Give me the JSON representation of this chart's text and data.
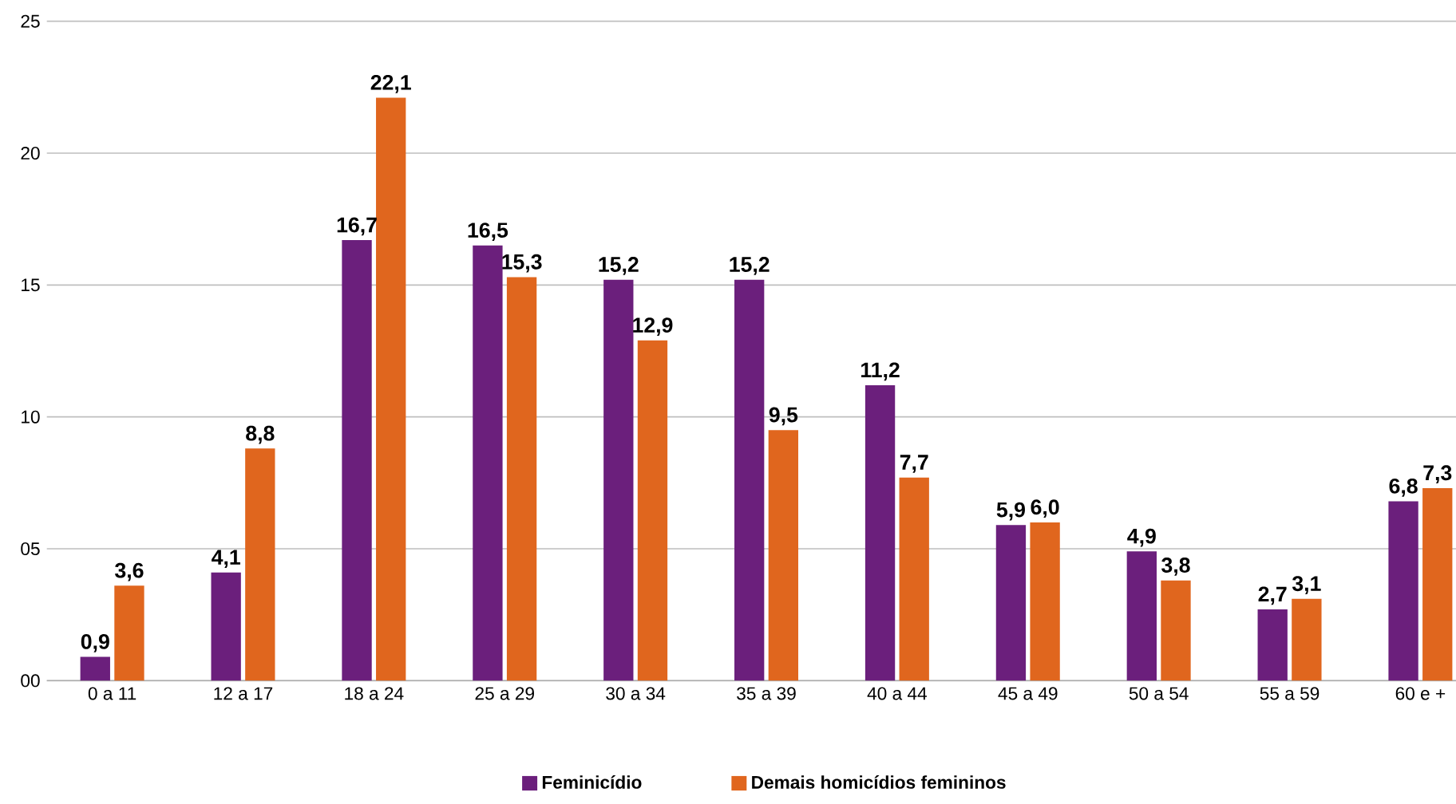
{
  "chart_data": {
    "type": "bar",
    "categories": [
      "0 a 11",
      "12 a 17",
      "18 a 24",
      "25 a 29",
      "30 a 34",
      "35 a 39",
      "40 a 44",
      "45 a 49",
      "50 a 54",
      "55 a 59",
      "60 e +"
    ],
    "series": [
      {
        "name": "Feminicídio",
        "color": "#6b1f7c",
        "values": [
          0.9,
          4.1,
          16.7,
          16.5,
          15.2,
          15.2,
          11.2,
          5.9,
          4.9,
          2.7,
          6.8
        ],
        "value_labels": [
          "0,9",
          "4,1",
          "16,7",
          "16,5",
          "15,2",
          "15,2",
          "11,2",
          "5,9",
          "4,9",
          "2,7",
          "6,8"
        ]
      },
      {
        "name": "Demais homicídios femininos",
        "color": "#e0661e",
        "values": [
          3.6,
          8.8,
          22.1,
          15.3,
          12.9,
          9.5,
          7.7,
          6.0,
          3.8,
          3.1,
          7.3
        ],
        "value_labels": [
          "3,6",
          "8,8",
          "22,1",
          "15,3",
          "12,9",
          "9,5",
          "7,7",
          "6,0",
          "3,8",
          "3,1",
          "7,3"
        ]
      }
    ],
    "ylim": [
      0,
      25
    ],
    "yticks": [
      {
        "value": 0,
        "label": "00"
      },
      {
        "value": 5,
        "label": "05"
      },
      {
        "value": 10,
        "label": "10"
      },
      {
        "value": 15,
        "label": "15"
      },
      {
        "value": 20,
        "label": "20"
      },
      {
        "value": 25,
        "label": "25"
      }
    ],
    "grid": "y",
    "legend": "bottom"
  }
}
